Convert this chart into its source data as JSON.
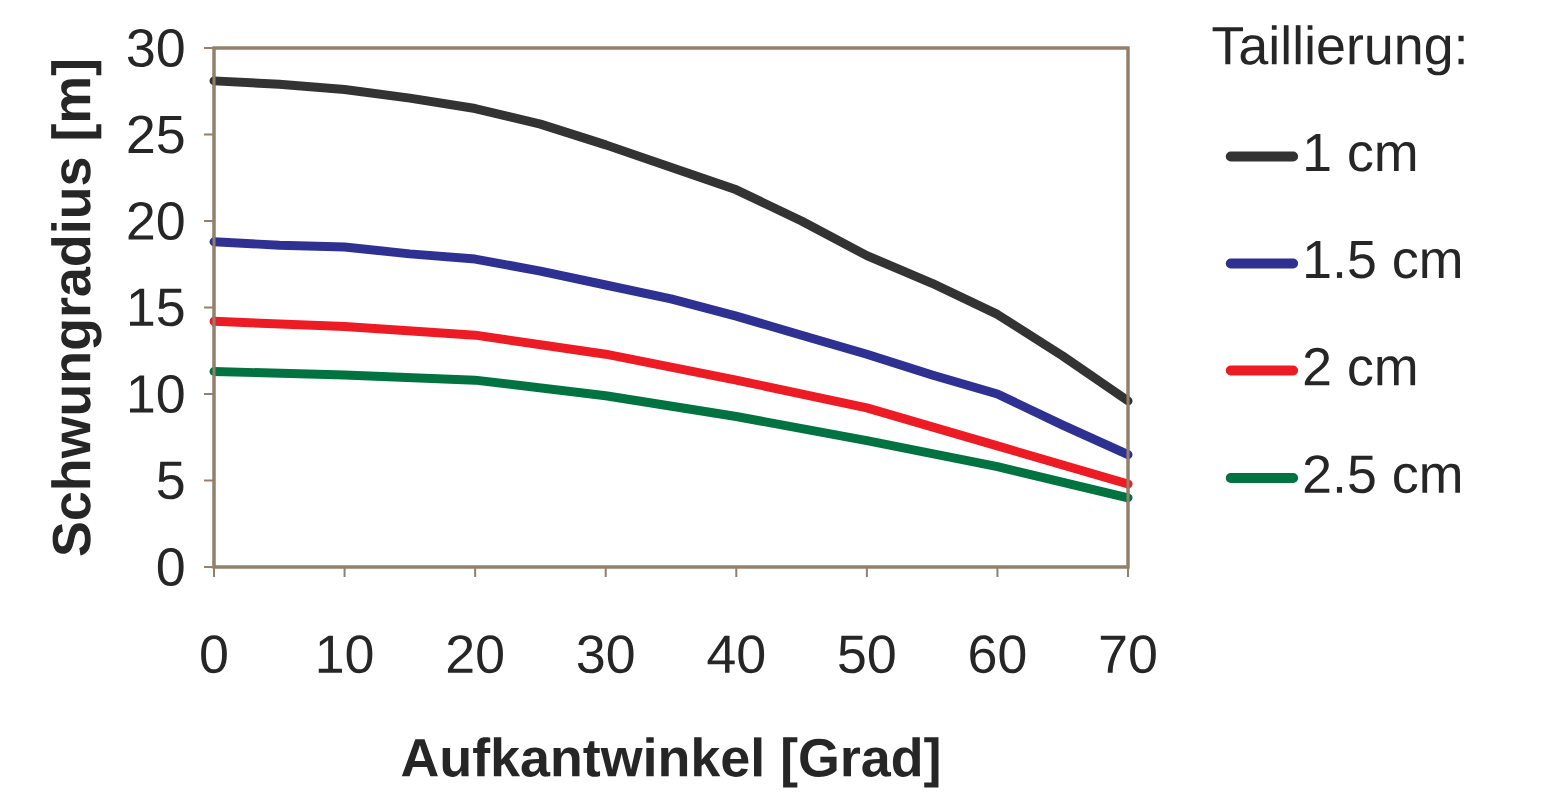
{
  "chart_data": {
    "type": "line",
    "xlabel": "Aufkantwinkel [Grad]",
    "ylabel": "Schwungradius [m]",
    "legend_title": "Taillierung:",
    "xlim": [
      0,
      70
    ],
    "ylim": [
      0,
      30
    ],
    "xticks": [
      0,
      10,
      20,
      30,
      40,
      50,
      60,
      70
    ],
    "yticks": [
      0,
      5,
      10,
      15,
      20,
      25,
      30
    ],
    "legend": "right",
    "grid": false,
    "line_style": "solid",
    "series": [
      {
        "name": "1 cm",
        "color": "#333333",
        "x": [
          0,
          5,
          10,
          15,
          20,
          25,
          30,
          35,
          40,
          45,
          50,
          55,
          60,
          65,
          70
        ],
        "values": [
          28.1,
          27.9,
          27.6,
          27.1,
          26.5,
          25.6,
          24.4,
          23.1,
          21.8,
          20.0,
          18.0,
          16.4,
          14.6,
          12.2,
          9.6
        ]
      },
      {
        "name": "1.5 cm",
        "color": "#2e3192",
        "x": [
          0,
          5,
          10,
          15,
          20,
          25,
          30,
          35,
          40,
          45,
          50,
          55,
          60,
          65,
          70
        ],
        "values": [
          18.8,
          18.6,
          18.5,
          18.1,
          17.8,
          17.1,
          16.3,
          15.5,
          14.5,
          13.4,
          12.3,
          11.1,
          10.0,
          8.2,
          6.5
        ]
      },
      {
        "name": "2 cm",
        "color": "#ed1c24",
        "x": [
          0,
          10,
          20,
          30,
          40,
          50,
          60,
          70
        ],
        "values": [
          14.2,
          13.9,
          13.4,
          12.3,
          10.8,
          9.2,
          7.0,
          4.8
        ]
      },
      {
        "name": "2.5 cm",
        "color": "#007341",
        "x": [
          0,
          10,
          20,
          30,
          40,
          50,
          60,
          70
        ],
        "values": [
          11.3,
          11.1,
          10.8,
          9.9,
          8.7,
          7.3,
          5.8,
          4.0
        ]
      }
    ]
  }
}
